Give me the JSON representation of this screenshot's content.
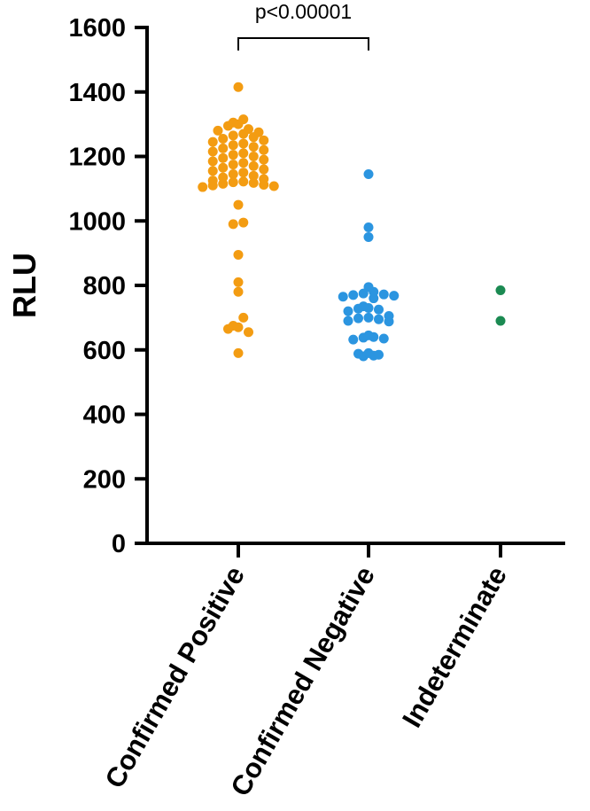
{
  "chart_data": {
    "type": "scatter",
    "ylabel": "RLU",
    "ylim": [
      0,
      1600
    ],
    "yticks": [
      0,
      200,
      400,
      600,
      800,
      1000,
      1200,
      1400,
      1600
    ],
    "ytick_labels": [
      "0",
      "200",
      "400",
      "600",
      "800",
      "1000",
      "1200",
      "1400",
      "1600"
    ],
    "categories": [
      "Confirmed Positive",
      "Confirmed Negative",
      "Indeterminate"
    ],
    "grid": false,
    "legend": "none",
    "series": [
      {
        "category": "Confirmed Positive",
        "color": "#F39C12",
        "values": [
          1415,
          1315,
          1305,
          1300,
          1295,
          1285,
          1280,
          1275,
          1270,
          1265,
          1260,
          1255,
          1250,
          1245,
          1240,
          1235,
          1230,
          1225,
          1220,
          1215,
          1210,
          1205,
          1200,
          1195,
          1190,
          1185,
          1180,
          1175,
          1170,
          1165,
          1160,
          1155,
          1150,
          1145,
          1140,
          1135,
          1130,
          1125,
          1122,
          1120,
          1118,
          1115,
          1112,
          1110,
          1108,
          1105,
          1050,
          995,
          990,
          895,
          810,
          780,
          700,
          675,
          670,
          665,
          655,
          590
        ]
      },
      {
        "category": "Confirmed Negative",
        "color": "#2B95E0",
        "values": [
          1145,
          980,
          950,
          795,
          780,
          775,
          772,
          770,
          768,
          765,
          760,
          735,
          730,
          728,
          725,
          720,
          705,
          700,
          698,
          695,
          690,
          688,
          645,
          640,
          638,
          635,
          632,
          590,
          588,
          585,
          582,
          580
        ]
      },
      {
        "category": "Indeterminate",
        "color": "#1B8A52",
        "values": [
          785,
          690
        ]
      }
    ],
    "annotations": [
      {
        "text": "p<0.00001",
        "between": [
          "Confirmed Positive",
          "Confirmed Negative"
        ]
      }
    ]
  }
}
